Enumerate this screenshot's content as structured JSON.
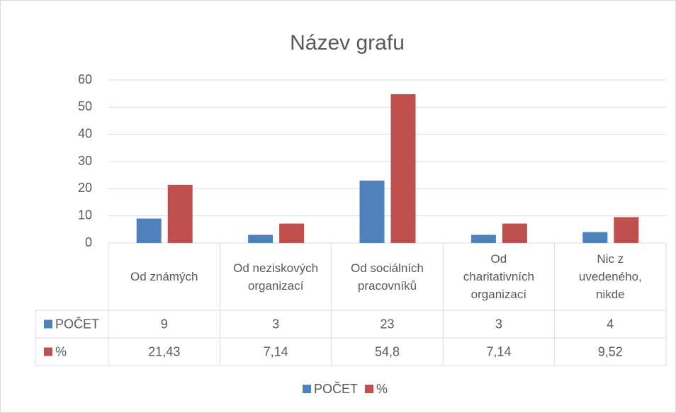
{
  "chart_data": {
    "type": "bar",
    "title": "Název grafu",
    "categories": [
      "Od známých",
      "Od neziskových organizací",
      "Od sociálních pracovníků",
      "Od charitativních organizací",
      "Nic z uvedeného, nikde"
    ],
    "series": [
      {
        "name": "POČET",
        "color": "#4f81bd",
        "values": [
          9,
          3,
          23,
          3,
          4
        ]
      },
      {
        "name": "%",
        "color": "#c0504d",
        "values": [
          21.43,
          7.14,
          54.8,
          7.14,
          9.52
        ],
        "value_labels": [
          "21,43",
          "7,14",
          "54,8",
          "7,14",
          "9,52"
        ]
      }
    ],
    "ylim": [
      0,
      60
    ],
    "yticks": [
      0,
      10,
      20,
      30,
      40,
      50,
      60
    ],
    "grid": true,
    "legend": "bottom"
  }
}
